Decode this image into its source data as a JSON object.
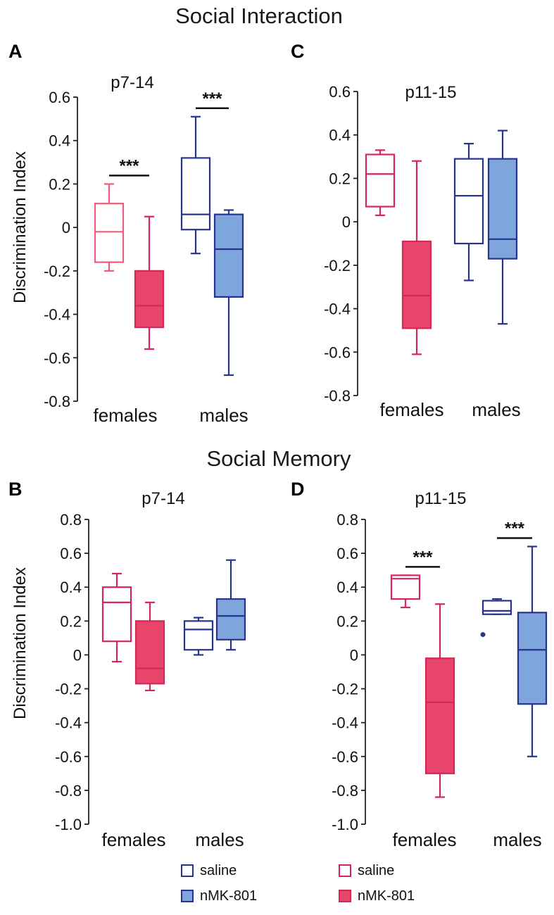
{
  "section_titles": [
    "Social Interaction",
    "Social Memory"
  ],
  "y_axis_label": "Discrimination Index",
  "colors": {
    "female_outline": "#d6265a",
    "female_saline_light": "#ef5b7a",
    "female_fill": "#e8456a",
    "male_outline": "#27338f",
    "male_fill": "#7fa6dc",
    "text": "#111111"
  },
  "legend": {
    "left": [
      {
        "label": "saline",
        "group": "male",
        "filled": false
      },
      {
        "label": "nMK-801",
        "group": "male",
        "filled": true
      }
    ],
    "right": [
      {
        "label": "saline",
        "group": "female",
        "filled": false
      },
      {
        "label": "nMK-801",
        "group": "female",
        "filled": true
      }
    ]
  },
  "chart_data": [
    {
      "panel": "A",
      "type": "boxplot",
      "title": "p7-14",
      "ylabel": "Discrimination Index",
      "ylim": [
        -0.8,
        0.6
      ],
      "yticks": [
        "0.6",
        "0.4",
        "0.2",
        "0",
        "-0.2",
        "-0.4",
        "-0.6",
        "-0.8"
      ],
      "categories": [
        "females",
        "males"
      ],
      "boxes": [
        {
          "group": "females",
          "treatment": "saline",
          "sex": "female",
          "min": -0.2,
          "q1": -0.16,
          "median": -0.02,
          "q3": 0.11,
          "max": 0.2,
          "outliers": []
        },
        {
          "group": "females",
          "treatment": "nMK-801",
          "sex": "female",
          "min": -0.56,
          "q1": -0.46,
          "median": -0.36,
          "q3": -0.2,
          "max": 0.05,
          "outliers": []
        },
        {
          "group": "males",
          "treatment": "saline",
          "sex": "male",
          "min": -0.12,
          "q1": -0.01,
          "median": 0.06,
          "q3": 0.32,
          "max": 0.51,
          "outliers": []
        },
        {
          "group": "males",
          "treatment": "nMK-801",
          "sex": "male",
          "min": -0.68,
          "q1": -0.32,
          "median": -0.1,
          "q3": 0.06,
          "max": 0.08,
          "outliers": []
        }
      ],
      "significance": [
        {
          "group": "females",
          "label": "***"
        },
        {
          "group": "males",
          "label": "***"
        }
      ]
    },
    {
      "panel": "C",
      "type": "boxplot",
      "title": "p11-15",
      "ylabel": "",
      "ylim": [
        -0.8,
        0.6
      ],
      "yticks": [
        "0.6",
        "0.4",
        "0.2",
        "0",
        "-0.2",
        "-0.4",
        "-0.6",
        "-0.8"
      ],
      "categories": [
        "females",
        "males"
      ],
      "boxes": [
        {
          "group": "females",
          "treatment": "saline",
          "sex": "female",
          "min": 0.03,
          "q1": 0.07,
          "median": 0.22,
          "q3": 0.31,
          "max": 0.33,
          "outliers": []
        },
        {
          "group": "females",
          "treatment": "nMK-801",
          "sex": "female",
          "min": -0.61,
          "q1": -0.49,
          "median": -0.34,
          "q3": -0.09,
          "max": 0.28,
          "outliers": []
        },
        {
          "group": "males",
          "treatment": "saline",
          "sex": "male",
          "min": -0.27,
          "q1": -0.1,
          "median": 0.12,
          "q3": 0.29,
          "max": 0.36,
          "outliers": []
        },
        {
          "group": "males",
          "treatment": "nMK-801",
          "sex": "male",
          "min": -0.47,
          "q1": -0.17,
          "median": -0.08,
          "q3": 0.29,
          "max": 0.42,
          "outliers": []
        }
      ],
      "significance": []
    },
    {
      "panel": "B",
      "type": "boxplot",
      "title": "p7-14",
      "ylabel": "Discrimination Index",
      "ylim": [
        -1.0,
        0.8
      ],
      "yticks": [
        "0.8",
        "0.6",
        "0.4",
        "0.2",
        "0",
        "-0.2",
        "-0.4",
        "-0.6",
        "-0.8",
        "-1.0"
      ],
      "categories": [
        "females",
        "males"
      ],
      "boxes": [
        {
          "group": "females",
          "treatment": "saline",
          "sex": "female",
          "min": -0.04,
          "q1": 0.08,
          "median": 0.31,
          "q3": 0.4,
          "max": 0.48,
          "outliers": []
        },
        {
          "group": "females",
          "treatment": "nMK-801",
          "sex": "female",
          "min": -0.21,
          "q1": -0.17,
          "median": -0.08,
          "q3": 0.2,
          "max": 0.31,
          "outliers": []
        },
        {
          "group": "males",
          "treatment": "saline",
          "sex": "male",
          "min": 0.0,
          "q1": 0.03,
          "median": 0.15,
          "q3": 0.2,
          "max": 0.22,
          "outliers": []
        },
        {
          "group": "males",
          "treatment": "nMK-801",
          "sex": "male",
          "min": 0.03,
          "q1": 0.09,
          "median": 0.23,
          "q3": 0.33,
          "max": 0.56,
          "outliers": []
        }
      ],
      "significance": []
    },
    {
      "panel": "D",
      "type": "boxplot",
      "title": "p11-15",
      "ylabel": "",
      "ylim": [
        -1.0,
        0.8
      ],
      "yticks": [
        "0.8",
        "0.6",
        "0.4",
        "0.2",
        "0",
        "-0.2",
        "-0.4",
        "-0.6",
        "-0.8",
        "-1.0"
      ],
      "categories": [
        "females",
        "males"
      ],
      "boxes": [
        {
          "group": "females",
          "treatment": "saline",
          "sex": "female",
          "min": 0.28,
          "q1": 0.33,
          "median": 0.45,
          "q3": 0.47,
          "max": 0.47,
          "outliers": []
        },
        {
          "group": "females",
          "treatment": "nMK-801",
          "sex": "female",
          "min": -0.84,
          "q1": -0.7,
          "median": -0.28,
          "q3": -0.02,
          "max": 0.3,
          "outliers": []
        },
        {
          "group": "males",
          "treatment": "saline",
          "sex": "male",
          "min": 0.24,
          "q1": 0.24,
          "median": 0.26,
          "q3": 0.32,
          "max": 0.33,
          "outliers": [
            0.12
          ]
        },
        {
          "group": "males",
          "treatment": "nMK-801",
          "sex": "male",
          "min": -0.6,
          "q1": -0.29,
          "median": 0.03,
          "q3": 0.25,
          "max": 0.64,
          "outliers": []
        }
      ],
      "significance": [
        {
          "group": "females",
          "label": "***"
        },
        {
          "group": "males",
          "label": "***"
        }
      ]
    }
  ]
}
